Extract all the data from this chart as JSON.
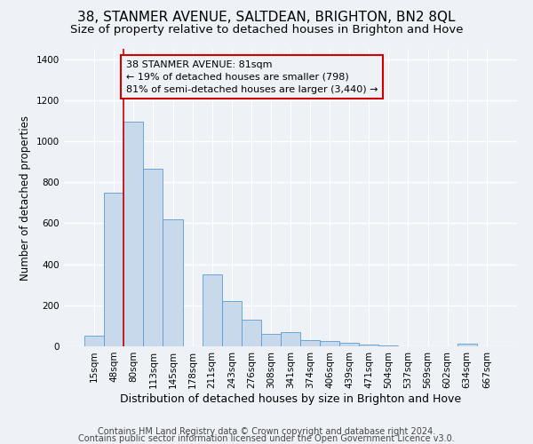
{
  "title_line1": "38, STANMER AVENUE, SALTDEAN, BRIGHTON, BN2 8QL",
  "title_line2": "Size of property relative to detached houses in Brighton and Hove",
  "xlabel": "Distribution of detached houses by size in Brighton and Hove",
  "ylabel": "Number of detached properties",
  "categories": [
    "15sqm",
    "48sqm",
    "80sqm",
    "113sqm",
    "145sqm",
    "178sqm",
    "211sqm",
    "243sqm",
    "276sqm",
    "308sqm",
    "341sqm",
    "374sqm",
    "406sqm",
    "439sqm",
    "471sqm",
    "504sqm",
    "537sqm",
    "569sqm",
    "602sqm",
    "634sqm",
    "667sqm"
  ],
  "values": [
    52,
    750,
    1095,
    865,
    620,
    0,
    350,
    222,
    130,
    62,
    70,
    30,
    25,
    17,
    10,
    5,
    2,
    0,
    2,
    12,
    0
  ],
  "bar_color": "#c8d9ec",
  "bar_edge_color": "#5b9bd5",
  "vline_x_index": 2,
  "vline_color": "#cc0000",
  "annotation_box_edge_color": "#cc0000",
  "annotation_text_line1": "38 STANMER AVENUE: 81sqm",
  "annotation_text_line2": "← 19% of detached houses are smaller (798)",
  "annotation_text_line3": "81% of semi-detached houses are larger (3,440) →",
  "footer_line1": "Contains HM Land Registry data © Crown copyright and database right 2024.",
  "footer_line2": "Contains public sector information licensed under the Open Government Licence v3.0.",
  "ylim": [
    0,
    1450
  ],
  "yticks": [
    0,
    200,
    400,
    600,
    800,
    1000,
    1200,
    1400
  ],
  "bg_color": "#eef2f7",
  "grid_color": "#ffffff",
  "title1_fontsize": 11,
  "title2_fontsize": 9.5,
  "xlabel_fontsize": 9,
  "ylabel_fontsize": 8.5,
  "tick_fontsize": 7.5,
  "annotation_fontsize": 8,
  "footer_fontsize": 7
}
